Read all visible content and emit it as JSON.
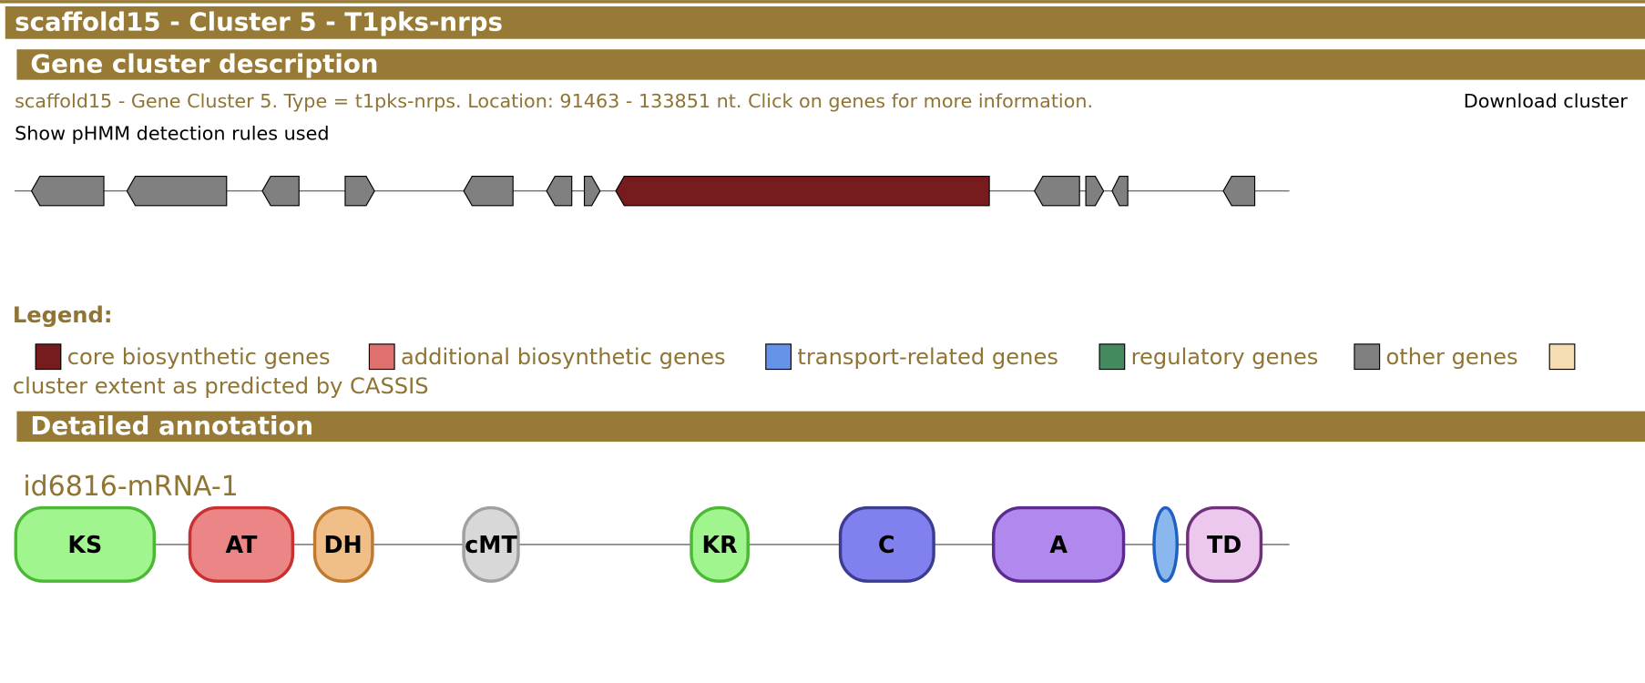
{
  "header": {
    "title": "scaffold15 - Cluster 5 - T1pks-nrps"
  },
  "description": {
    "title": "Gene cluster description",
    "text": "scaffold15 - Gene Cluster 5. Type = t1pks-nrps. Location: 91463 - 133851 nt. Click on genes for more information.",
    "download": "Download cluster",
    "rules_link": "Show pHMM detection rules used"
  },
  "legend": {
    "title": "Legend:",
    "items": [
      "core biosynthetic genes",
      "additional biosynthetic genes",
      "transport-related genes",
      "regulatory genes",
      "other genes",
      "cluster extent as predicted by CASSIS"
    ]
  },
  "annotation": {
    "title": "Detailed annotation",
    "gene": "id6816-mRNA-1",
    "domains": [
      "KS",
      "AT",
      "DH",
      "cMT",
      "KR",
      "C",
      "A",
      "TD"
    ]
  }
}
